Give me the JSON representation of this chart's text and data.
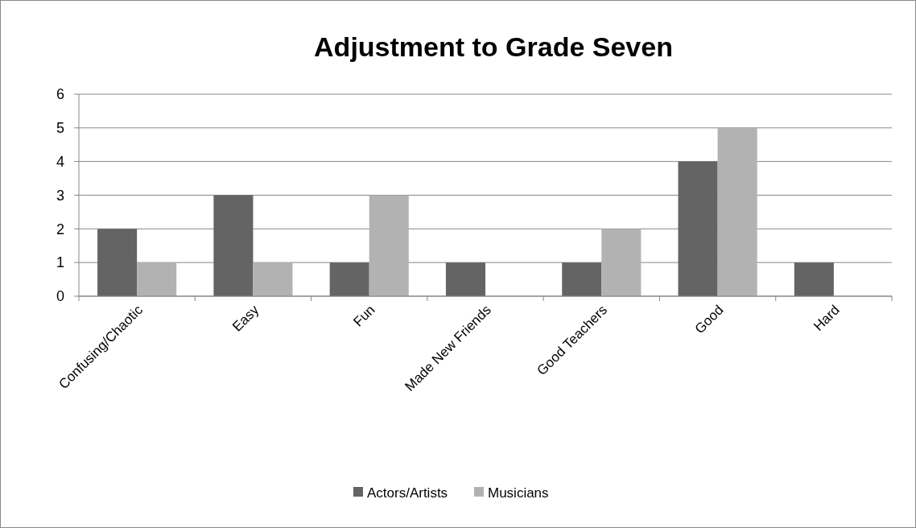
{
  "chart_data": {
    "type": "bar",
    "title": "Adjustment to Grade Seven",
    "categories": [
      "Confusing/Chaotic",
      "Easy",
      "Fun",
      "Made New Friends",
      "Good Teachers",
      "Good",
      "Hard"
    ],
    "series": [
      {
        "name": "Actors/Artists",
        "color": "#646464",
        "values": [
          2,
          3,
          1,
          1,
          1,
          4,
          1
        ]
      },
      {
        "name": "Musicians",
        "color": "#b2b2b2",
        "values": [
          1,
          1,
          3,
          0,
          2,
          5,
          0
        ]
      }
    ],
    "ylim": [
      0,
      6
    ],
    "yticks": [
      0,
      1,
      2,
      3,
      4,
      5,
      6
    ],
    "grid": "y",
    "legend": "bottom"
  }
}
